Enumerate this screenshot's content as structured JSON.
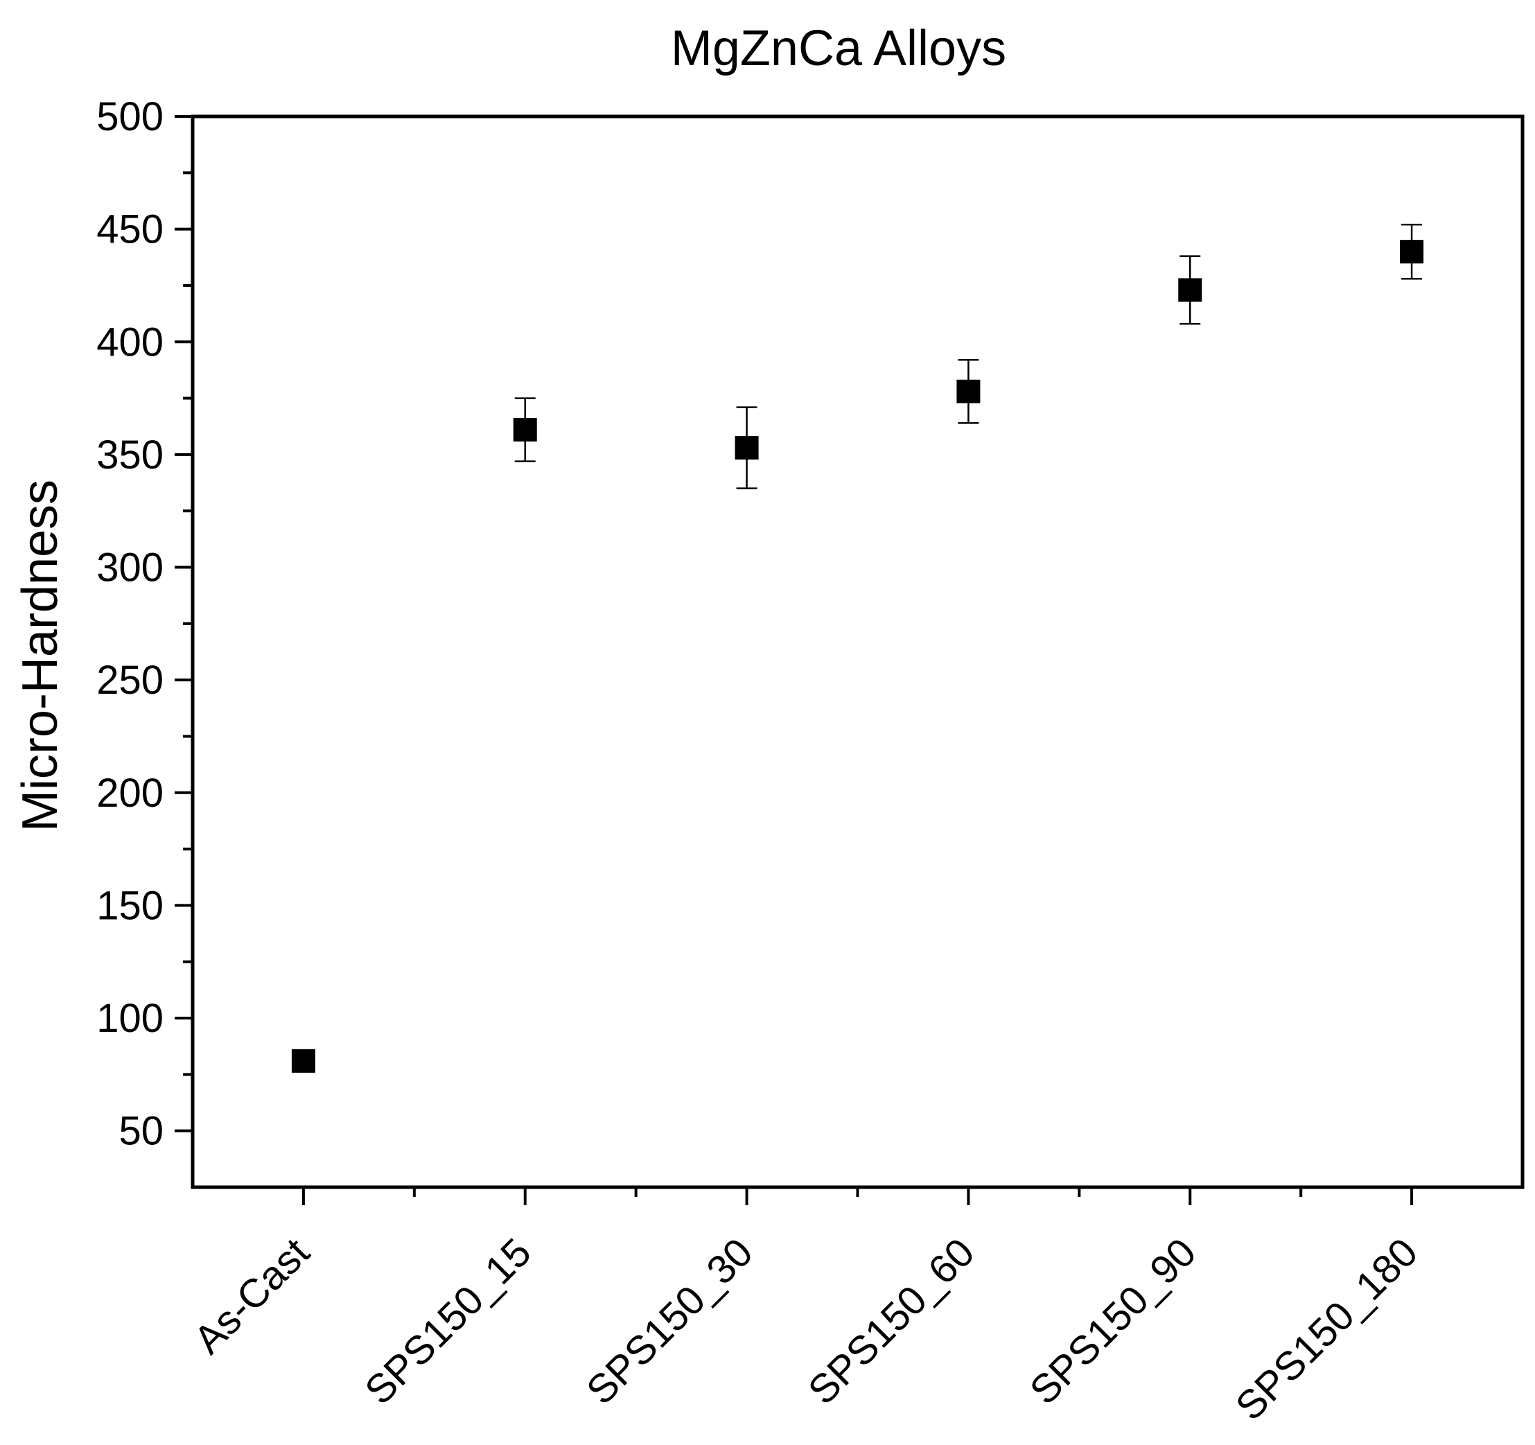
{
  "chart_data": {
    "type": "scatter",
    "title": "MgZnCa Alloys",
    "xlabel": "",
    "ylabel": "Micro-Hardness",
    "categories": [
      "As-Cast",
      "SPS150_15",
      "SPS150_30",
      "SPS150_60",
      "SPS150_90",
      "SPS150_180"
    ],
    "series": [
      {
        "values": [
          81,
          361,
          353,
          378,
          423,
          440
        ],
        "errors": [
          0,
          14,
          18,
          14,
          15,
          12
        ],
        "marker": "square",
        "color": "#000000"
      }
    ],
    "ylim": [
      25,
      500
    ],
    "yticks": [
      50,
      100,
      150,
      200,
      250,
      300,
      350,
      400,
      450,
      500
    ],
    "ytick_labels": [
      "50",
      "100",
      "150",
      "200",
      "250",
      "300",
      "350",
      "400",
      "450",
      "500"
    ],
    "grid": false,
    "legend": "none"
  }
}
